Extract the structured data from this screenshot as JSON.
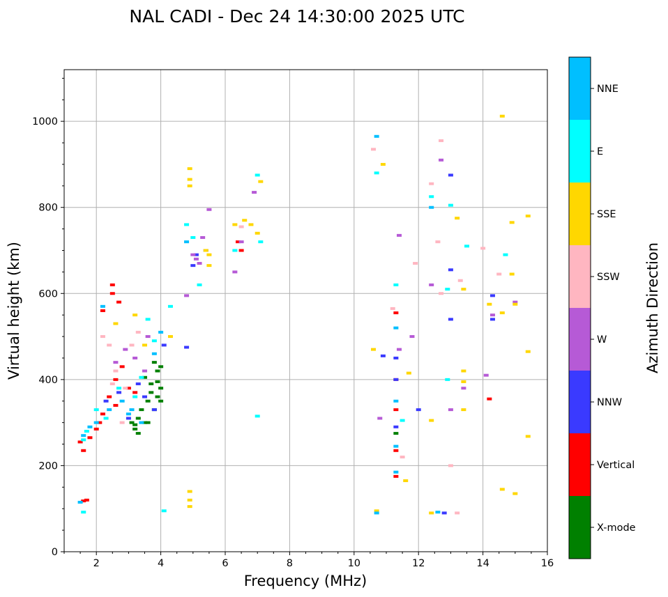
{
  "chart_data": {
    "type": "scatter",
    "title": "NAL CADI - Dec 24 14:30:00 2025 UTC",
    "xlabel": "Frequency (MHz)",
    "ylabel": "Virtual height (km)",
    "xlim": [
      1,
      16
    ],
    "ylim": [
      0,
      1120
    ],
    "xticks": [
      2,
      4,
      6,
      8,
      10,
      12,
      14,
      16
    ],
    "yticks": [
      0,
      200,
      400,
      600,
      800,
      1000
    ],
    "grid": true,
    "colorbar": {
      "label": "Azimuth Direction",
      "categories": [
        {
          "name": "X-mode",
          "color": "#008000"
        },
        {
          "name": "Vertical",
          "color": "#ff0000"
        },
        {
          "name": "NNW",
          "color": "#3a3aff"
        },
        {
          "name": "W",
          "color": "#b65ad6"
        },
        {
          "name": "SSW",
          "color": "#ffb6c1"
        },
        {
          "name": "SSE",
          "color": "#ffd700"
        },
        {
          "name": "E",
          "color": "#00ffff"
        },
        {
          "name": "NNE",
          "color": "#00bfff"
        }
      ]
    },
    "series": [
      {
        "name": "X-mode",
        "points": [
          [
            3.2,
            285
          ],
          [
            3.5,
            300
          ],
          [
            3.8,
            330
          ],
          [
            3.9,
            360
          ],
          [
            4.0,
            380
          ],
          [
            3.6,
            350
          ],
          [
            3.4,
            330
          ],
          [
            3.3,
            310
          ],
          [
            3.7,
            390
          ],
          [
            3.9,
            420
          ],
          [
            4.0,
            430
          ],
          [
            3.5,
            405
          ],
          [
            3.1,
            300
          ],
          [
            3.8,
            440
          ],
          [
            3.6,
            300
          ],
          [
            4.0,
            350
          ],
          [
            3.3,
            275
          ],
          [
            3.9,
            395
          ],
          [
            3.7,
            370
          ],
          [
            3.2,
            295
          ],
          [
            11.3,
            275
          ]
        ]
      },
      {
        "name": "Vertical",
        "points": [
          [
            1.5,
            255
          ],
          [
            1.6,
            235
          ],
          [
            1.8,
            265
          ],
          [
            2.0,
            285
          ],
          [
            2.2,
            320
          ],
          [
            2.4,
            360
          ],
          [
            2.5,
            600
          ],
          [
            2.5,
            620
          ],
          [
            2.6,
            400
          ],
          [
            2.8,
            430
          ],
          [
            3.0,
            380
          ],
          [
            3.2,
            370
          ],
          [
            2.2,
            560
          ],
          [
            2.7,
            580
          ],
          [
            1.7,
            120
          ],
          [
            1.6,
            118
          ],
          [
            6.4,
            720
          ],
          [
            6.5,
            700
          ],
          [
            11.3,
            235
          ],
          [
            11.3,
            175
          ],
          [
            11.3,
            330
          ],
          [
            11.3,
            400
          ],
          [
            11.3,
            555
          ],
          [
            14.2,
            355
          ],
          [
            2.1,
            300
          ],
          [
            2.6,
            340
          ]
        ]
      },
      {
        "name": "NNW",
        "points": [
          [
            2.3,
            350
          ],
          [
            2.7,
            370
          ],
          [
            3.3,
            390
          ],
          [
            3.5,
            360
          ],
          [
            3.8,
            330
          ],
          [
            4.1,
            480
          ],
          [
            5.1,
            690
          ],
          [
            5.0,
            665
          ],
          [
            5.4,
            700
          ],
          [
            10.9,
            455
          ],
          [
            11.3,
            450
          ],
          [
            11.3,
            400
          ],
          [
            11.3,
            290
          ],
          [
            12.0,
            330
          ],
          [
            12.8,
            90
          ],
          [
            13.0,
            875
          ],
          [
            13.0,
            655
          ],
          [
            13.0,
            540
          ],
          [
            14.3,
            595
          ],
          [
            14.3,
            540
          ],
          [
            3.0,
            310
          ],
          [
            4.8,
            475
          ]
        ]
      },
      {
        "name": "W",
        "points": [
          [
            2.6,
            440
          ],
          [
            2.9,
            470
          ],
          [
            3.2,
            450
          ],
          [
            3.6,
            500
          ],
          [
            4.8,
            595
          ],
          [
            5.0,
            690
          ],
          [
            5.1,
            680
          ],
          [
            5.3,
            730
          ],
          [
            5.5,
            795
          ],
          [
            6.5,
            720
          ],
          [
            6.3,
            650
          ],
          [
            6.9,
            835
          ],
          [
            10.8,
            310
          ],
          [
            11.4,
            470
          ],
          [
            11.4,
            735
          ],
          [
            11.8,
            500
          ],
          [
            12.4,
            620
          ],
          [
            12.7,
            910
          ],
          [
            13.0,
            330
          ],
          [
            13.4,
            380
          ],
          [
            14.1,
            410
          ],
          [
            14.3,
            550
          ],
          [
            15.0,
            580
          ],
          [
            3.5,
            420
          ],
          [
            5.2,
            670
          ]
        ]
      },
      {
        "name": "SSW",
        "points": [
          [
            2.2,
            500
          ],
          [
            2.4,
            480
          ],
          [
            2.5,
            390
          ],
          [
            2.6,
            420
          ],
          [
            2.8,
            300
          ],
          [
            3.1,
            480
          ],
          [
            3.3,
            510
          ],
          [
            2.9,
            380
          ],
          [
            6.5,
            755
          ],
          [
            10.6,
            935
          ],
          [
            11.2,
            565
          ],
          [
            11.5,
            220
          ],
          [
            11.9,
            670
          ],
          [
            12.4,
            855
          ],
          [
            12.6,
            720
          ],
          [
            12.7,
            955
          ],
          [
            12.7,
            600
          ],
          [
            13.0,
            200
          ],
          [
            13.3,
            630
          ],
          [
            14.0,
            705
          ],
          [
            14.5,
            645
          ],
          [
            13.2,
            90
          ]
        ]
      },
      {
        "name": "SSE",
        "points": [
          [
            2.6,
            530
          ],
          [
            3.2,
            550
          ],
          [
            3.5,
            480
          ],
          [
            4.3,
            500
          ],
          [
            4.9,
            890
          ],
          [
            4.9,
            865
          ],
          [
            4.9,
            850
          ],
          [
            4.9,
            140
          ],
          [
            4.9,
            120
          ],
          [
            4.9,
            105
          ],
          [
            5.5,
            690
          ],
          [
            5.5,
            665
          ],
          [
            6.3,
            760
          ],
          [
            6.6,
            770
          ],
          [
            7.0,
            740
          ],
          [
            7.1,
            860
          ],
          [
            10.6,
            470
          ],
          [
            10.7,
            95
          ],
          [
            10.9,
            900
          ],
          [
            11.6,
            165
          ],
          [
            11.7,
            415
          ],
          [
            12.4,
            305
          ],
          [
            12.4,
            90
          ],
          [
            13.2,
            775
          ],
          [
            13.4,
            420
          ],
          [
            13.4,
            395
          ],
          [
            13.4,
            330
          ],
          [
            13.4,
            610
          ],
          [
            14.2,
            575
          ],
          [
            14.6,
            1012
          ],
          [
            14.6,
            555
          ],
          [
            14.6,
            145
          ],
          [
            14.9,
            765
          ],
          [
            14.9,
            645
          ],
          [
            15.0,
            135
          ],
          [
            15.0,
            575
          ],
          [
            15.4,
            780
          ],
          [
            15.4,
            465
          ],
          [
            15.4,
            268
          ],
          [
            5.4,
            700
          ],
          [
            6.8,
            760
          ]
        ]
      },
      {
        "name": "E",
        "points": [
          [
            1.6,
            260
          ],
          [
            1.7,
            280
          ],
          [
            2.0,
            330
          ],
          [
            2.3,
            310
          ],
          [
            2.7,
            380
          ],
          [
            3.2,
            360
          ],
          [
            3.6,
            540
          ],
          [
            3.8,
            490
          ],
          [
            4.1,
            95
          ],
          [
            4.3,
            570
          ],
          [
            4.8,
            760
          ],
          [
            5.0,
            730
          ],
          [
            5.2,
            620
          ],
          [
            6.3,
            700
          ],
          [
            7.0,
            875
          ],
          [
            7.0,
            315
          ],
          [
            7.1,
            720
          ],
          [
            10.7,
            880
          ],
          [
            11.3,
            620
          ],
          [
            11.5,
            305
          ],
          [
            12.4,
            825
          ],
          [
            12.9,
            400
          ],
          [
            12.9,
            610
          ],
          [
            13.0,
            805
          ],
          [
            13.5,
            710
          ],
          [
            14.7,
            690
          ],
          [
            1.6,
            92
          ],
          [
            3.4,
            405
          ]
        ]
      },
      {
        "name": "NNE",
        "points": [
          [
            1.6,
            270
          ],
          [
            1.8,
            290
          ],
          [
            2.0,
            300
          ],
          [
            2.4,
            330
          ],
          [
            2.8,
            350
          ],
          [
            3.0,
            320
          ],
          [
            3.4,
            300
          ],
          [
            3.8,
            460
          ],
          [
            4.0,
            510
          ],
          [
            2.2,
            570
          ],
          [
            4.8,
            720
          ],
          [
            10.7,
            965
          ],
          [
            11.3,
            520
          ],
          [
            11.3,
            350
          ],
          [
            11.3,
            245
          ],
          [
            11.3,
            185
          ],
          [
            10.7,
            90
          ],
          [
            12.4,
            800
          ],
          [
            12.6,
            92
          ],
          [
            1.5,
            115
          ],
          [
            3.1,
            330
          ]
        ]
      }
    ]
  }
}
